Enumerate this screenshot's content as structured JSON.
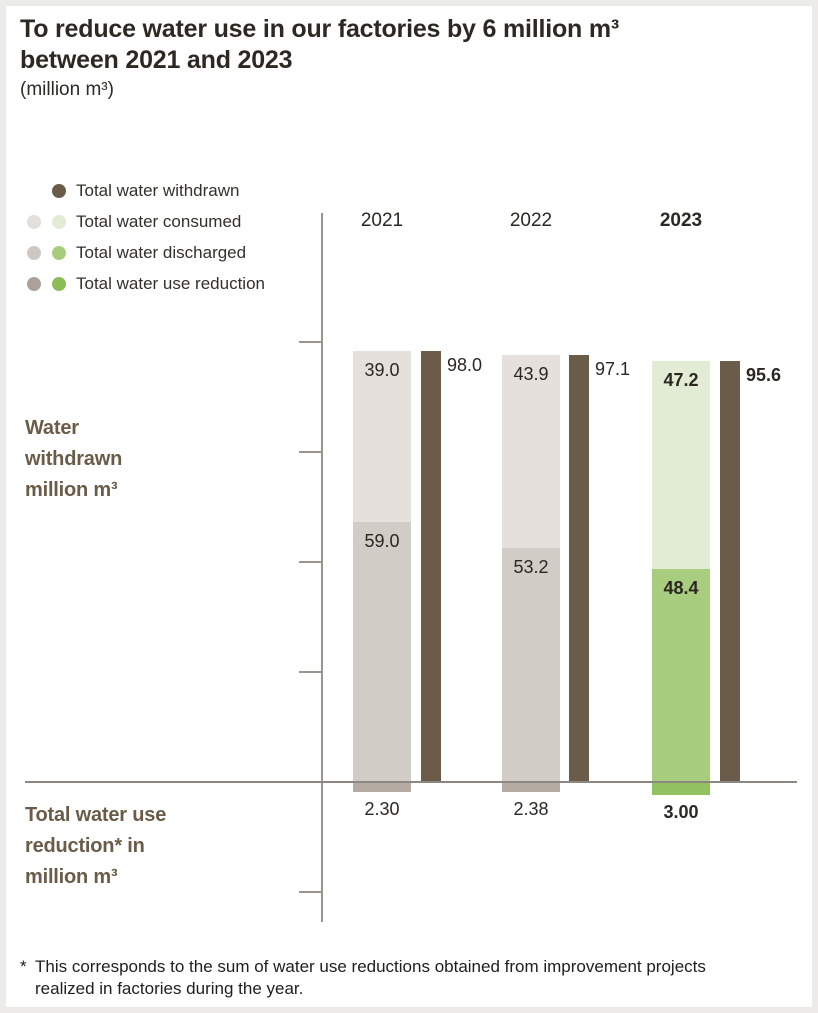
{
  "header": {
    "title": "To reduce water use in our factories by 6 million m³\nbetween 2021 and 2023",
    "subtitle": "(million m³)"
  },
  "legend": {
    "items": [
      {
        "label": "Total water withdrawn",
        "dots": [
          null,
          "#6a5c49"
        ]
      },
      {
        "label": "Total water consumed",
        "dots": [
          "#e4dfda",
          "#e2ecd4"
        ]
      },
      {
        "label": "Total water discharged",
        "dots": [
          "#cfc8c2",
          "#a9cd7e"
        ]
      },
      {
        "label": "Total water use reduction",
        "dots": [
          "#aba199",
          "#8dbd58"
        ]
      }
    ]
  },
  "axis": {
    "left_label_top": "Water\nwithdrawn\nmillion m³",
    "left_label_bottom": "Total water use\nreduction* in\nmillion m³",
    "tick_values_unlabeled": [
      100,
      75,
      50,
      25,
      -25
    ],
    "baseline_value": 0
  },
  "chart_data": {
    "type": "bar",
    "title": "To reduce water use in our factories by 6 million m³ between 2021 and 2023",
    "unit": "million m³",
    "categories": [
      "2021",
      "2022",
      "2023"
    ],
    "highlight_category": "2023",
    "series": [
      {
        "name": "Total water withdrawn",
        "values": [
          98.0,
          97.1,
          95.6
        ]
      },
      {
        "name": "Total water consumed",
        "values": [
          39.0,
          43.9,
          47.2
        ]
      },
      {
        "name": "Total water discharged",
        "values": [
          59.0,
          53.2,
          48.4
        ]
      },
      {
        "name": "Total water use reduction",
        "values": [
          2.3,
          2.38,
          3.0
        ]
      }
    ],
    "ylim": [
      -30,
      130
    ],
    "legend_position": "top-left",
    "grid": false,
    "colors": {
      "withdrawn": "#6a5c49",
      "gray": {
        "consumed": "#e5e0db",
        "discharged": "#d2ccc6",
        "reduction": "#b5aba2"
      },
      "green": {
        "consumed": "#e2ecd4",
        "discharged": "#a9cd7e",
        "reduction": "#92c160"
      }
    },
    "palette_by_year": [
      "gray",
      "gray",
      "green"
    ]
  },
  "footnote": {
    "marker": "*",
    "text": "This corresponds to the sum of water use reductions obtained from improvement projects\nrealized in factories during the year."
  }
}
